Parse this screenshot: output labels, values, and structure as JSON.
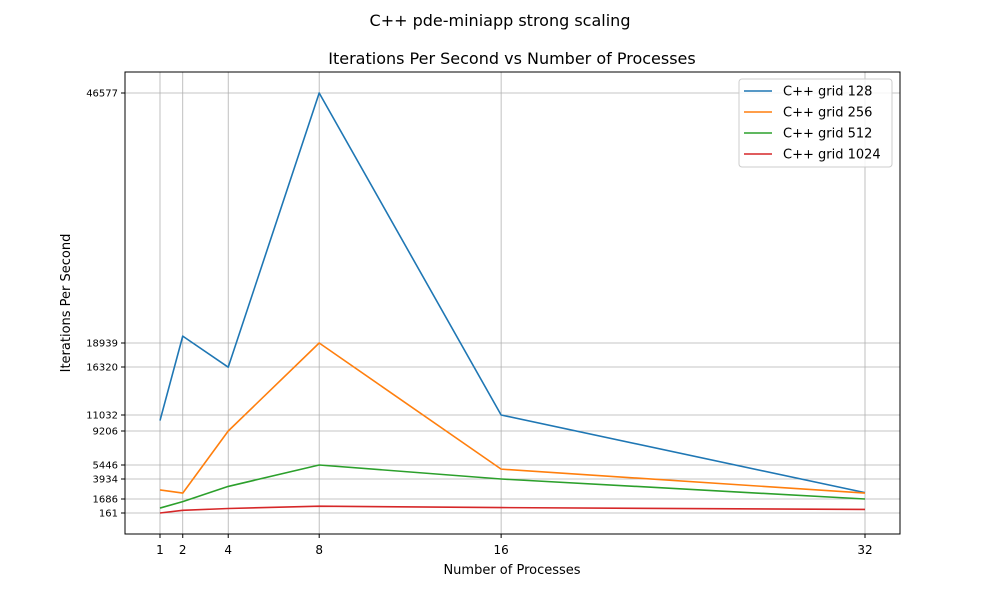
{
  "chart_data": {
    "type": "line",
    "suptitle": "C++ pde-miniapp strong scaling",
    "title": "Iterations Per Second vs Number of Processes",
    "xlabel": "Number of Processes",
    "ylabel": "Iterations Per Second",
    "x": [
      1,
      2,
      4,
      8,
      16,
      32
    ],
    "xticks": [
      "1",
      "2",
      "4",
      "8",
      "16",
      "32"
    ],
    "yticks": [
      "161",
      "1686",
      "3934",
      "5446",
      "9206",
      "11032",
      "16320",
      "18939",
      "46577"
    ],
    "grid": true,
    "legend_position": "top-right",
    "series": [
      {
        "name": "C++ grid 128",
        "color": "#1f77b4",
        "values": [
          10400,
          19700,
          16300,
          46577,
          11032,
          2400
        ]
      },
      {
        "name": "C++ grid 256",
        "color": "#ff7f0e",
        "values": [
          2700,
          2350,
          9206,
          18939,
          5000,
          2350
        ]
      },
      {
        "name": "C++ grid 512",
        "color": "#2ca02c",
        "values": [
          700,
          1400,
          3100,
          5446,
          3934,
          1686
        ]
      },
      {
        "name": "C++ grid 1024",
        "color": "#d62728",
        "values": [
          161,
          450,
          650,
          900,
          750,
          550
        ]
      }
    ]
  }
}
